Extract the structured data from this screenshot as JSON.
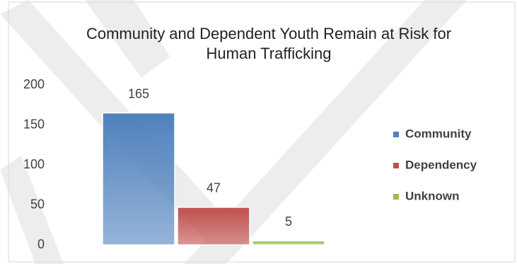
{
  "chart_data": {
    "type": "bar",
    "title": "Community and Dependent Youth Remain at Risk for Human Trafficking",
    "categories": [
      null
    ],
    "series": [
      {
        "name": "Community",
        "color": "#4f81bd",
        "values": [
          165
        ]
      },
      {
        "name": "Dependency",
        "color": "#c0504d",
        "values": [
          47
        ]
      },
      {
        "name": "Unknown",
        "color": "#9bbb59",
        "values": [
          5
        ]
      }
    ],
    "ylim": [
      0,
      200
    ],
    "yticks": [
      0,
      50,
      100,
      150,
      200
    ],
    "grid": false,
    "legend": "right",
    "data_labels": true
  }
}
